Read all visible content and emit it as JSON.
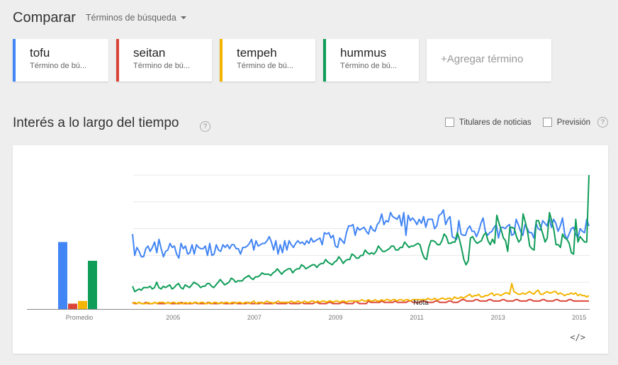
{
  "header": {
    "title": "Comparar",
    "subtitle": "Términos de búsqueda"
  },
  "terms": [
    {
      "name": "tofu",
      "type": "Término de bú...",
      "color": "#4285f4"
    },
    {
      "name": "seitan",
      "type": "Término de bú...",
      "color": "#db4437"
    },
    {
      "name": "tempeh",
      "type": "Término de bú...",
      "color": "#f4b400"
    },
    {
      "name": "hummus",
      "type": "Término de bú...",
      "color": "#0f9d58"
    }
  ],
  "add_term": "+Agregar término",
  "section": {
    "title": "Interés a lo largo del tiempo",
    "help": "?",
    "options": [
      {
        "label": "Titulares de noticias"
      },
      {
        "label": "Previsión"
      }
    ]
  },
  "embed_label": "</>",
  "chart_data": {
    "type": "line",
    "averages_label": "Promedio",
    "averages": [
      {
        "name": "tofu",
        "value": 50,
        "color": "#4285f4"
      },
      {
        "name": "seitan",
        "value": 4,
        "color": "#db4437"
      },
      {
        "name": "tempeh",
        "value": 6,
        "color": "#f4b400"
      },
      {
        "name": "hummus",
        "value": 36,
        "color": "#0f9d58"
      }
    ],
    "x_start": 2004.0,
    "x_step": 0.08333,
    "x_ticks": [
      "2005",
      "2007",
      "2009",
      "2011",
      "2013",
      "2015"
    ],
    "x_tick_values": [
      2005,
      2007,
      2009,
      2011,
      2013,
      2015
    ],
    "ylim": [
      0,
      100
    ],
    "grid": true,
    "note_label": "Nota",
    "note_x": 2011.1,
    "series": [
      {
        "name": "tofu",
        "color": "#4285f4",
        "values": [
          56,
          40,
          46,
          43,
          39,
          39,
          45,
          47,
          43,
          46,
          50,
          42,
          52,
          45,
          39,
          43,
          44,
          49,
          46,
          47,
          41,
          38,
          49,
          45,
          47,
          41,
          42,
          48,
          41,
          48,
          46,
          45,
          45,
          47,
          40,
          49,
          40,
          41,
          48,
          44,
          43,
          48,
          46,
          48,
          45,
          48,
          48,
          45,
          45,
          41,
          46,
          46,
          47,
          49,
          52,
          44,
          51,
          47,
          48,
          49,
          49,
          51,
          54,
          50,
          44,
          51,
          41,
          48,
          42,
          51,
          44,
          51,
          48,
          46,
          49,
          51,
          49,
          50,
          48,
          51,
          49,
          53,
          50,
          51,
          52,
          53,
          48,
          57,
          56,
          57,
          53,
          55,
          47,
          46,
          53,
          51,
          49,
          57,
          62,
          62,
          63,
          55,
          61,
          59,
          60,
          61,
          58,
          56,
          62,
          59,
          58,
          63,
          65,
          71,
          63,
          66,
          65,
          72,
          69,
          68,
          67,
          70,
          62,
          72,
          55,
          70,
          66,
          68,
          66,
          63,
          67,
          64,
          69,
          61,
          67,
          67,
          67,
          60,
          62,
          70,
          71,
          74,
          63,
          67,
          69,
          54,
          53,
          52,
          66,
          56,
          55,
          55,
          60,
          62,
          58,
          58,
          54,
          58,
          64,
          68,
          58,
          55,
          57,
          58,
          61,
          63,
          53,
          61,
          61,
          60,
          62,
          63,
          55,
          56,
          67,
          63,
          58,
          55,
          63,
          60,
          57,
          57,
          53,
          64,
          60,
          59,
          66,
          64,
          62,
          68,
          61,
          67,
          64,
          58,
          62,
          68,
          56,
          52,
          56,
          60,
          61,
          56,
          53,
          60,
          58,
          57,
          67,
          62
        ]
      },
      {
        "name": "seitan",
        "color": "#db4437",
        "values": [
          5,
          4,
          4,
          5,
          4,
          4,
          5,
          4,
          4,
          4,
          5,
          4,
          4,
          4,
          4,
          4,
          5,
          4,
          4,
          4,
          4,
          4,
          5,
          4,
          4,
          4,
          4,
          4,
          5,
          4,
          4,
          4,
          4,
          4,
          5,
          4,
          4,
          4,
          4,
          4,
          5,
          4,
          4,
          4,
          4,
          4,
          5,
          4,
          4,
          4,
          4,
          4,
          5,
          4,
          4,
          4,
          4,
          4,
          5,
          4,
          4,
          4,
          4,
          4,
          5,
          4,
          4,
          4,
          4,
          4,
          5,
          4,
          4,
          4,
          4,
          4,
          5,
          4,
          4,
          4,
          4,
          4,
          5,
          5,
          4,
          4,
          4,
          4,
          5,
          5,
          4,
          4,
          4,
          4,
          5,
          5,
          4,
          4,
          4,
          4,
          6,
          5,
          4,
          4,
          4,
          4,
          6,
          5,
          5,
          5,
          5,
          5,
          6,
          5,
          5,
          5,
          5,
          5,
          6,
          5,
          5,
          5,
          5,
          5,
          6,
          6,
          5,
          5,
          5,
          5,
          6,
          6,
          5,
          5,
          5,
          5,
          6,
          6,
          5,
          5,
          5,
          5,
          6,
          6,
          5,
          5,
          5,
          6,
          7,
          7,
          6,
          6,
          6,
          6,
          7,
          7,
          6,
          6,
          6,
          6,
          7,
          7,
          6,
          6,
          6,
          6,
          7,
          7,
          6,
          6,
          6,
          6,
          7,
          7,
          6,
          6,
          6,
          6,
          7,
          7,
          6,
          6,
          6,
          6,
          7,
          7,
          6,
          6,
          6,
          6,
          7,
          7,
          6,
          6,
          6,
          6,
          7,
          7,
          6,
          6,
          6,
          6,
          6,
          6,
          6,
          6
        ]
      },
      {
        "name": "tempeh",
        "color": "#f4b400",
        "values": [
          4,
          5,
          4,
          5,
          4,
          4,
          4,
          5,
          4,
          4,
          5,
          4,
          5,
          5,
          5,
          4,
          5,
          4,
          5,
          5,
          4,
          5,
          4,
          4,
          5,
          4,
          5,
          4,
          5,
          5,
          4,
          5,
          5,
          4,
          4,
          5,
          4,
          5,
          5,
          4,
          5,
          4,
          5,
          5,
          4,
          5,
          5,
          4,
          5,
          5,
          4,
          5,
          5,
          4,
          5,
          6,
          4,
          5,
          5,
          4,
          5,
          6,
          5,
          5,
          4,
          5,
          6,
          5,
          5,
          5,
          5,
          5,
          6,
          5,
          5,
          6,
          5,
          5,
          6,
          5,
          5,
          6,
          6,
          5,
          6,
          5,
          6,
          6,
          5,
          6,
          6,
          5,
          6,
          6,
          5,
          6,
          6,
          5,
          6,
          6,
          6,
          6,
          6,
          6,
          7,
          6,
          6,
          7,
          6,
          6,
          7,
          6,
          6,
          7,
          6,
          7,
          7,
          6,
          7,
          7,
          6,
          7,
          7,
          6,
          7,
          7,
          6,
          7,
          7,
          7,
          7,
          7,
          7,
          7,
          8,
          7,
          7,
          8,
          7,
          7,
          8,
          8,
          7,
          8,
          8,
          7,
          9,
          8,
          8,
          9,
          8,
          9,
          10,
          11,
          9,
          10,
          10,
          11,
          9,
          9,
          10,
          10,
          11,
          12,
          10,
          11,
          11,
          10,
          11,
          12,
          12,
          11,
          19,
          13,
          12,
          11,
          11,
          12,
          11,
          12,
          13,
          12,
          11,
          13,
          14,
          11,
          11,
          12,
          13,
          12,
          12,
          13,
          13,
          11,
          12,
          11,
          10,
          11,
          11,
          12,
          11,
          12,
          10,
          11,
          10,
          10,
          9,
          10
        ]
      },
      {
        "name": "hummus",
        "color": "#0f9d58",
        "values": [
          17,
          13,
          14,
          15,
          14,
          16,
          16,
          16,
          17,
          15,
          16,
          20,
          16,
          15,
          17,
          16,
          17,
          18,
          15,
          16,
          18,
          19,
          16,
          15,
          18,
          17,
          16,
          18,
          20,
          19,
          18,
          16,
          17,
          17,
          19,
          19,
          17,
          16,
          18,
          20,
          22,
          20,
          18,
          19,
          20,
          23,
          22,
          20,
          21,
          21,
          21,
          23,
          24,
          25,
          23,
          22,
          24,
          24,
          25,
          27,
          26,
          26,
          26,
          25,
          27,
          28,
          30,
          28,
          26,
          28,
          29,
          30,
          30,
          27,
          29,
          30,
          30,
          33,
          32,
          30,
          31,
          32,
          33,
          33,
          31,
          33,
          34,
          34,
          37,
          35,
          34,
          33,
          35,
          36,
          39,
          37,
          34,
          36,
          37,
          37,
          41,
          40,
          38,
          38,
          40,
          40,
          44,
          42,
          41,
          42,
          41,
          43,
          47,
          45,
          43,
          43,
          44,
          45,
          47,
          47,
          44,
          44,
          46,
          46,
          50,
          48,
          46,
          47,
          47,
          48,
          49,
          48,
          42,
          38,
          37,
          46,
          51,
          51,
          50,
          48,
          48,
          51,
          56,
          54,
          49,
          49,
          50,
          50,
          57,
          52,
          45,
          37,
          33,
          36,
          53,
          54,
          51,
          49,
          50,
          51,
          55,
          57,
          51,
          48,
          52,
          49,
          70,
          64,
          59,
          53,
          51,
          43,
          61,
          61,
          60,
          54,
          50,
          52,
          71,
          65,
          58,
          47,
          45,
          44,
          66,
          66,
          61,
          56,
          50,
          53,
          72,
          66,
          59,
          48,
          48,
          46,
          56,
          53,
          52,
          49,
          42,
          41,
          67,
          50,
          54,
          52,
          50,
          50,
          100
        ]
      }
    ]
  }
}
